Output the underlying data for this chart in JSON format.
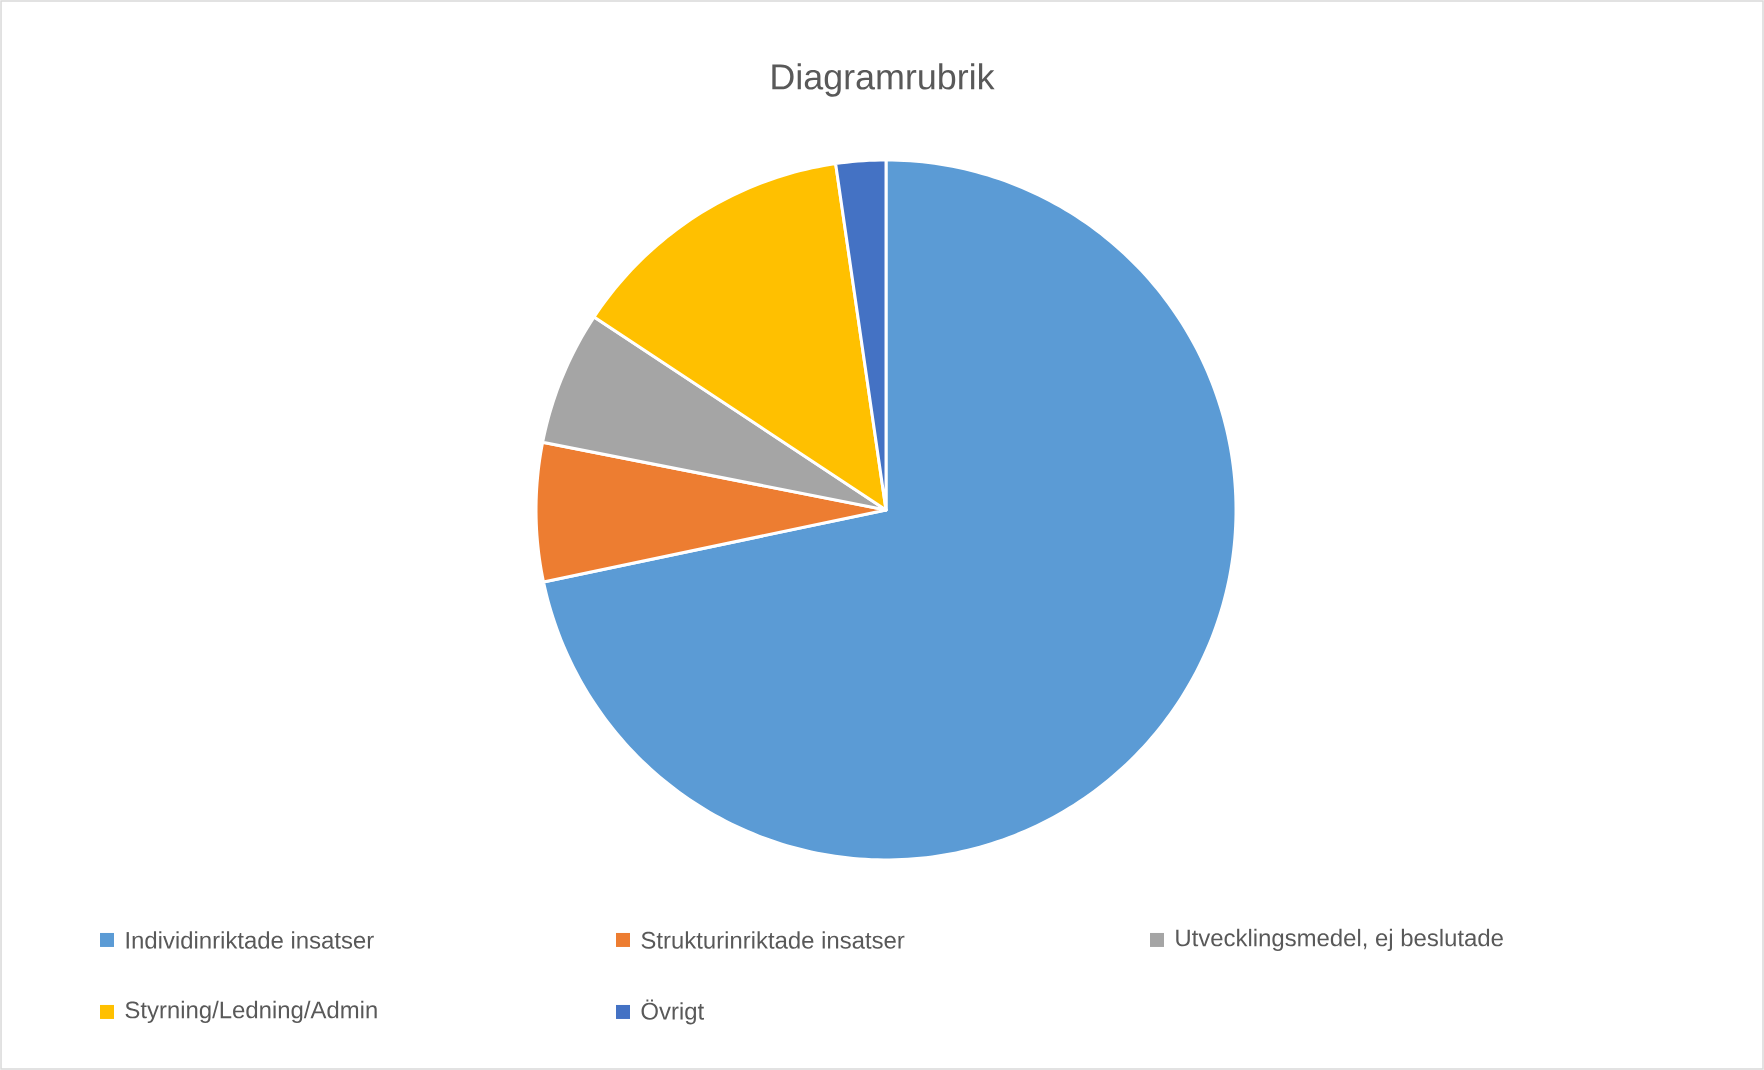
{
  "chart_data": {
    "type": "pie",
    "title": "Diagramrubrik",
    "categories": [
      "Individinriktade insatser",
      "Strukturinriktade insatser",
      "Utvecklingsmedel, ej beslutade",
      "Styrning/Ledning/Admin",
      "Övrigt"
    ],
    "values": [
      71.7,
      6.4,
      6.2,
      13.4,
      2.3
    ],
    "colors": [
      "#5b9bd5",
      "#ed7d31",
      "#a5a5a5",
      "#ffc000",
      "#4472c4"
    ],
    "legend": "bottom"
  }
}
